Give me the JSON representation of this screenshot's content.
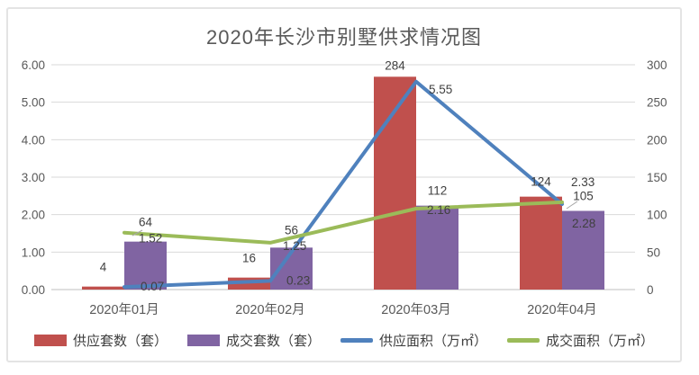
{
  "chart_data": {
    "type": "combo-bar-line",
    "title": "2020年长沙市别墅供求情况图",
    "categories": [
      "2020年01月",
      "2020年02月",
      "2020年03月",
      "2020年04月"
    ],
    "series": [
      {
        "key": "supply-units",
        "name": "供应套数（套）",
        "type": "bar",
        "axis": "right",
        "color": "#C0504D",
        "values": [
          4,
          16,
          284,
          124
        ]
      },
      {
        "key": "sold-units",
        "name": "成交套数（套）",
        "type": "bar",
        "axis": "right",
        "color": "#8064A2",
        "values": [
          64,
          56,
          112,
          105
        ]
      },
      {
        "key": "supply-area",
        "name": "供应面积（万㎡）",
        "type": "line",
        "axis": "left",
        "color": "#4F81BD",
        "values": [
          0.07,
          0.23,
          5.55,
          2.28
        ]
      },
      {
        "key": "sold-area",
        "name": "成交面积（万㎡）",
        "type": "line",
        "axis": "left",
        "color": "#9BBB59",
        "values": [
          1.52,
          1.25,
          2.16,
          2.33
        ]
      }
    ],
    "left_axis": {
      "min": 0,
      "max": 6,
      "step": 1,
      "tick_labels": [
        "0.00",
        "1.00",
        "2.00",
        "3.00",
        "4.00",
        "5.00",
        "6.00"
      ]
    },
    "right_axis": {
      "min": 0,
      "max": 300,
      "step": 50,
      "tick_labels": [
        "0",
        "50",
        "100",
        "150",
        "200",
        "250",
        "300"
      ]
    },
    "grid": true,
    "data_labels": true,
    "legend_position": "bottom",
    "grid_color": "#D9D9D9",
    "axis_line_color": "#BFBFBF",
    "leader_line_color": "#A6A6A6"
  }
}
